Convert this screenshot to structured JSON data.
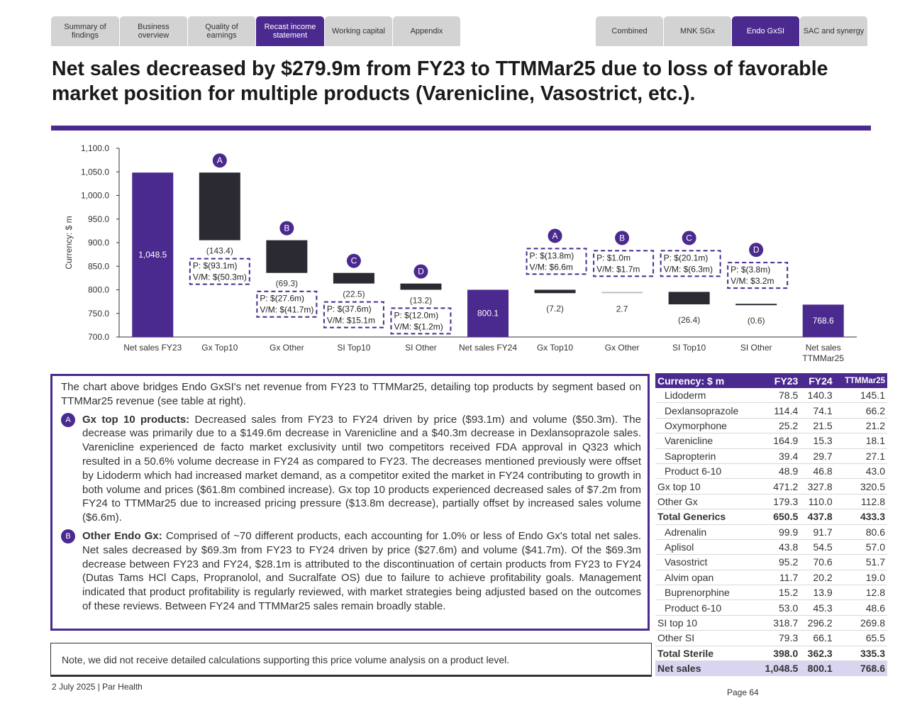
{
  "nav_left": [
    "Summary of findings",
    "Business overview",
    "Quality of earnings",
    "Recast income statement",
    "Working capital",
    "Appendix"
  ],
  "nav_left_active": 3,
  "nav_right": [
    "Combined",
    "MNK SGx",
    "Endo GxSI",
    "SAC and synergy"
  ],
  "nav_right_active": 2,
  "title": "Net sales decreased by $279.9m from FY23 to TTMMar25 due to loss of favorable market position for multiple products (Varenicline, Vasostrict, etc.).",
  "colors": {
    "accent": "#4b2a8f",
    "dark_bar": "#2b2a33",
    "light_bar": "#bfbfbf"
  },
  "chart_data": {
    "type": "bar",
    "subtype": "waterfall",
    "ylabel": "Currency: $ m",
    "ylim": [
      700,
      1100
    ],
    "yticks": [
      "1,100.0",
      "1,050.0",
      "1,000.0",
      "950.0",
      "900.0",
      "850.0",
      "800.0",
      "750.0",
      "700.0"
    ],
    "ytick_values": [
      1100,
      1050,
      1000,
      950,
      900,
      850,
      800,
      750,
      700
    ],
    "categories": [
      "Net sales FY23",
      "Gx Top10",
      "Gx Other",
      "SI Top10",
      "SI Other",
      "Net sales FY24",
      "Gx Top10",
      "Gx Other",
      "SI Top10",
      "SI Other",
      "Net sales TTMMar25"
    ],
    "values": [
      1048.5,
      -143.4,
      -69.3,
      -22.5,
      -13.2,
      800.1,
      -7.2,
      2.7,
      -26.4,
      -0.6,
      768.6
    ],
    "kinds": [
      "total",
      "delta",
      "delta",
      "delta",
      "delta",
      "total",
      "delta",
      "delta",
      "delta",
      "delta",
      "total"
    ],
    "value_labels": [
      "1,048.5",
      "(143.4)",
      "(69.3)",
      "(22.5)",
      "(13.2)",
      "800.1",
      "(7.2)",
      "2.7",
      "(26.4)",
      "(0.6)",
      "768.6"
    ],
    "annotations": [
      {
        "index": 1,
        "badge": "A",
        "lines": [
          "P: $(93.1m)",
          "V/M: $(50.3m)"
        ]
      },
      {
        "index": 2,
        "badge": "B",
        "lines": [
          "P: $(27.6m)",
          "V/M: $(41.7m)"
        ]
      },
      {
        "index": 3,
        "badge": "C",
        "lines": [
          "P: $(37.6m)",
          "V/M: $15.1m"
        ]
      },
      {
        "index": 4,
        "badge": "D",
        "lines": [
          "P: $(12.0m)",
          "V/M: $(1.2m)"
        ]
      },
      {
        "index": 6,
        "badge": "A",
        "lines": [
          "P: $(13.8m)",
          "V/M: $6.6m"
        ]
      },
      {
        "index": 7,
        "badge": "B",
        "lines": [
          "P: $1.0m",
          "V/M: $1.7m"
        ]
      },
      {
        "index": 8,
        "badge": "C",
        "lines": [
          "P: $(20.1m)",
          "V/M: $(6.3m)"
        ]
      },
      {
        "index": 9,
        "badge": "D",
        "lines": [
          "P: $(3.8m)",
          "V/M: $3.2m"
        ]
      }
    ]
  },
  "commentary": {
    "intro": "The chart above bridges Endo GxSI's net revenue from FY23 to TTMMar25, detailing top products by segment based on TTMMar25 revenue (see table at right).",
    "items": [
      {
        "badge": "A",
        "heading": "Gx top 10 products:",
        "text": " Decreased sales from FY23 to FY24 driven by price ($93.1m) and volume ($50.3m). The decrease was primarily due to a $149.6m decrease in Varenicline and a $40.3m decrease in Dexlansoprazole sales. Varenicline experienced de facto market exclusivity until two competitors received FDA approval in Q323 which resulted in a 50.6% volume decrease in FY24 as compared to FY23. The decreases mentioned previously were offset by Lidoderm which had increased market demand, as a competitor exited the market in FY24 contributing to growth in both volume and prices ($61.8m combined increase). Gx top 10 products experienced decreased sales of $7.2m from FY24 to TTMMar25 due to increased pricing pressure ($13.8m decrease), partially offset by increased sales volume ($6.6m)."
      },
      {
        "badge": "B",
        "heading": "Other Endo Gx:",
        "text": " Comprised of ~70 different products, each accounting for 1.0% or less of Endo Gx's total net sales. Net sales decreased by $69.3m from FY23 to FY24 driven by price ($27.6m) and volume ($41.7m). Of the $69.3m decrease between FY23 and FY24, $28.1m is attributed to the discontinuation of certain products from FY23 to FY24 (Dutas Tams HCl Caps, Propranolol, and Sucralfate OS) due to failure to achieve profitability goals. Management indicated that product profitability is regularly reviewed, with market strategies being adjusted based on the outcomes of these reviews. Between FY24 and TTMMar25 sales remain broadly stable."
      }
    ]
  },
  "note": "Note, we did not receive detailed calculations supporting this price volume analysis on a product level.",
  "table": {
    "headers": [
      "Currency: $ m",
      "FY23",
      "FY24",
      "TTMMar25"
    ],
    "rows": [
      {
        "label": "Lidoderm",
        "v": [
          "78.5",
          "140.3",
          "145.1"
        ],
        "style": "sub"
      },
      {
        "label": "Dexlansoprazole",
        "v": [
          "114.4",
          "74.1",
          "66.2"
        ],
        "style": "sub"
      },
      {
        "label": "Oxymorphone",
        "v": [
          "25.2",
          "21.5",
          "21.2"
        ],
        "style": "sub"
      },
      {
        "label": "Varenicline",
        "v": [
          "164.9",
          "15.3",
          "18.1"
        ],
        "style": "sub"
      },
      {
        "label": "Sapropterin",
        "v": [
          "39.4",
          "29.7",
          "27.1"
        ],
        "style": "sub"
      },
      {
        "label": "Product 6-10",
        "v": [
          "48.9",
          "46.8",
          "43.0"
        ],
        "style": "sub"
      },
      {
        "label": "Gx top 10",
        "v": [
          "471.2",
          "327.8",
          "320.5"
        ],
        "style": "plain"
      },
      {
        "label": "Other Gx",
        "v": [
          "179.3",
          "110.0",
          "112.8"
        ],
        "style": "plain"
      },
      {
        "label": "Total Generics",
        "v": [
          "650.5",
          "437.8",
          "433.3"
        ],
        "style": "total"
      },
      {
        "label": "Adrenalin",
        "v": [
          "99.9",
          "91.7",
          "80.6"
        ],
        "style": "sub"
      },
      {
        "label": "Aplisol",
        "v": [
          "43.8",
          "54.5",
          "57.0"
        ],
        "style": "sub"
      },
      {
        "label": "Vasostrict",
        "v": [
          "95.2",
          "70.6",
          "51.7"
        ],
        "style": "sub"
      },
      {
        "label": "Alvim opan",
        "v": [
          "11.7",
          "20.2",
          "19.0"
        ],
        "style": "sub"
      },
      {
        "label": "Buprenorphine",
        "v": [
          "15.2",
          "13.9",
          "12.8"
        ],
        "style": "sub"
      },
      {
        "label": "Product 6-10",
        "v": [
          "53.0",
          "45.3",
          "48.6"
        ],
        "style": "sub"
      },
      {
        "label": "SI top 10",
        "v": [
          "318.7",
          "296.2",
          "269.8"
        ],
        "style": "plain"
      },
      {
        "label": "Other SI",
        "v": [
          "79.3",
          "66.1",
          "65.5"
        ],
        "style": "plain"
      },
      {
        "label": "Total Sterile",
        "v": [
          "398.0",
          "362.3",
          "335.3"
        ],
        "style": "total"
      },
      {
        "label": "Net sales",
        "v": [
          "1,048.5",
          "800.1",
          "768.6"
        ],
        "style": "net"
      }
    ]
  },
  "footer": "2 July 2025 | Par Health",
  "page": "Page 64"
}
